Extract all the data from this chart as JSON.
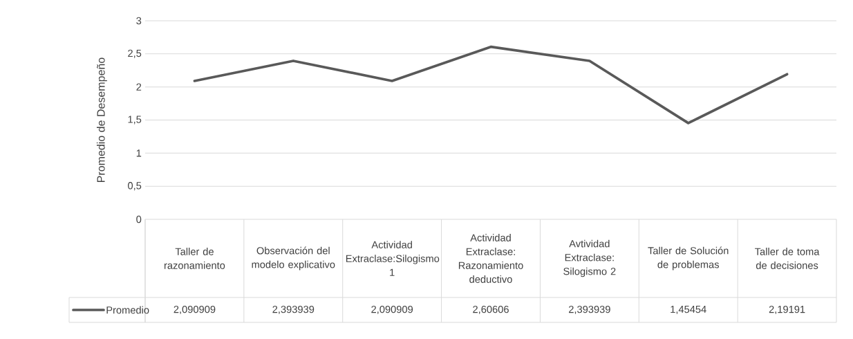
{
  "chart_data": {
    "type": "line",
    "ylabel": "Promedio de Desempeño",
    "categories": [
      "Taller de razonamiento",
      "Observación del modelo explicativo",
      "Actividad Extraclase:Silogismo 1",
      "Actividad Extraclase: Razonamiento deductivo",
      "Avtividad Extraclase: Silogismo 2",
      "Taller de Solución de problemas",
      "Taller de toma de decisiones"
    ],
    "series": [
      {
        "name": "Promedio",
        "color": "#595959",
        "values": [
          2.090909,
          2.393939,
          2.090909,
          2.60606,
          2.393939,
          1.45454,
          2.19191
        ],
        "value_labels": [
          "2,090909",
          "2,393939",
          "2,090909",
          "2,60606",
          "2,393939",
          "1,45454",
          "2,19191"
        ]
      }
    ],
    "ylim": [
      0,
      3
    ],
    "yticks": [
      {
        "value": 0,
        "label": "0"
      },
      {
        "value": 0.5,
        "label": "0,5"
      },
      {
        "value": 1,
        "label": "1"
      },
      {
        "value": 1.5,
        "label": "1,5"
      },
      {
        "value": 2,
        "label": "2"
      },
      {
        "value": 2.5,
        "label": "2,5"
      },
      {
        "value": 3,
        "label": "3"
      }
    ],
    "grid": "y",
    "legend": "bottom",
    "marker": "none",
    "line_style": "solid"
  }
}
